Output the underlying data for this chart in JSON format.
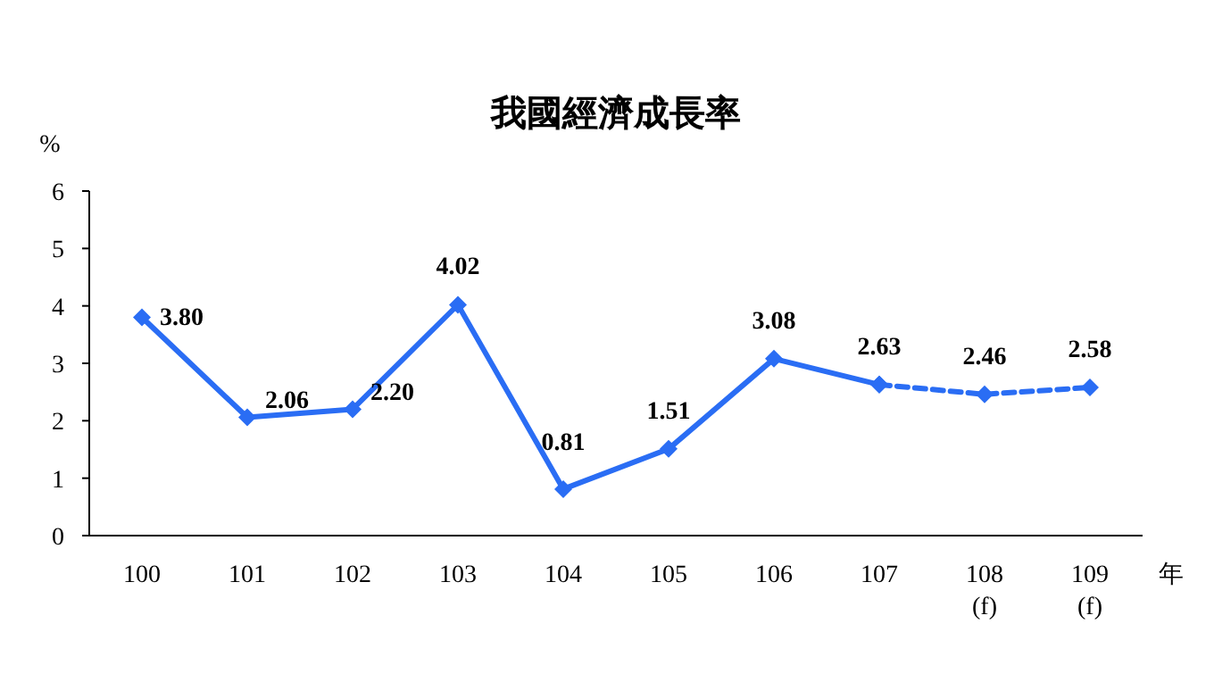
{
  "chart_data": {
    "type": "line",
    "title": "我國經濟成長率",
    "ylabel": "%",
    "xlabel": "年",
    "categories": [
      "100",
      "101",
      "102",
      "103",
      "104",
      "105",
      "106",
      "107",
      "108\n(f)",
      "109\n(f)"
    ],
    "series": [
      {
        "color": "#2a6df4",
        "values": [
          3.8,
          2.06,
          2.2,
          4.02,
          0.81,
          1.51,
          3.08,
          2.63,
          null,
          null
        ],
        "value_labels": [
          "3.80",
          "2.06",
          "2.20",
          "4.02",
          "0.81",
          "1.51",
          "3.08",
          "2.63",
          null,
          null
        ],
        "line_style": "solid",
        "marker": "diamond"
      },
      {
        "color": "#2a6df4",
        "values": [
          null,
          null,
          null,
          null,
          null,
          null,
          null,
          2.63,
          2.46,
          2.58
        ],
        "value_labels": [
          null,
          null,
          null,
          null,
          null,
          null,
          null,
          null,
          "2.46",
          "2.58"
        ],
        "line_style": "dashed",
        "marker": "diamond"
      }
    ],
    "ylim": [
      0,
      6
    ],
    "yticks": [
      0,
      1,
      2,
      3,
      4,
      5,
      6
    ],
    "grid": false
  }
}
